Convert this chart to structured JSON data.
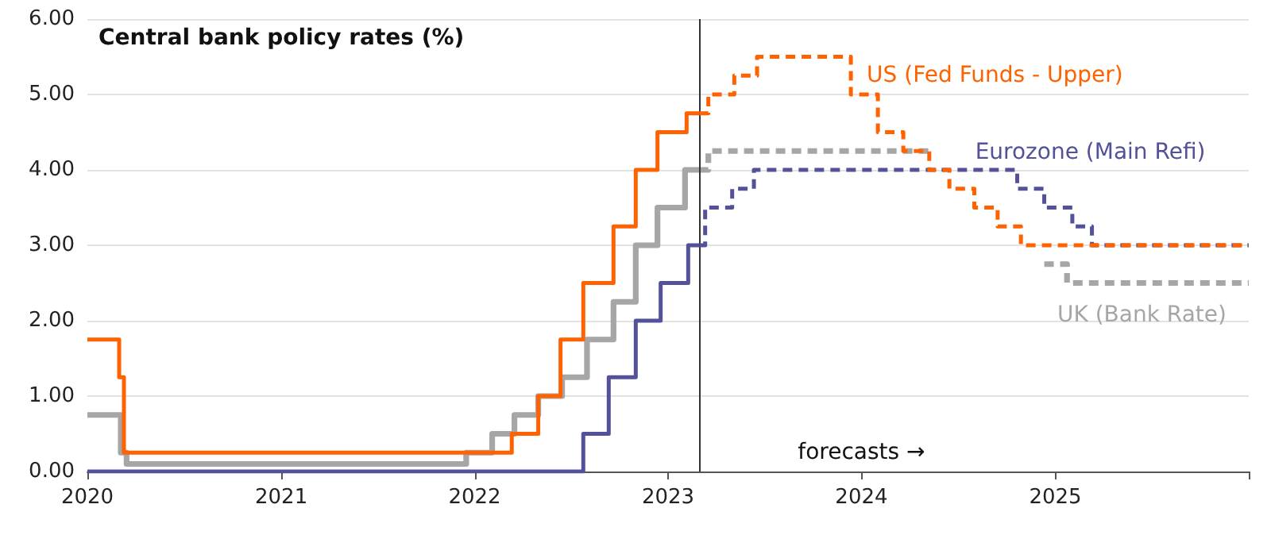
{
  "chart_data": {
    "type": "step",
    "title": "Central bank policy rates (%)",
    "xlim": [
      "2020-01-01",
      "2026-01-01"
    ],
    "xticks": [
      {
        "value": "2020-01-01",
        "label": "2020"
      },
      {
        "value": "2021-01-01",
        "label": "2021"
      },
      {
        "value": "2022-01-01",
        "label": "2022"
      },
      {
        "value": "2023-01-01",
        "label": "2023"
      },
      {
        "value": "2024-01-01",
        "label": "2024"
      },
      {
        "value": "2025-01-01",
        "label": "2025"
      },
      {
        "value": "2026-01-01",
        "label": null
      }
    ],
    "ylim": [
      0,
      6
    ],
    "yticks": [
      {
        "value": 0,
        "label": "0.00"
      },
      {
        "value": 1,
        "label": "1.00"
      },
      {
        "value": 2,
        "label": "2.00"
      },
      {
        "value": 3,
        "label": "3.00"
      },
      {
        "value": 4,
        "label": "4.00"
      },
      {
        "value": 5,
        "label": "5.00"
      },
      {
        "value": 6,
        "label": "6.00"
      }
    ],
    "grid": "y",
    "series": [
      {
        "color": "#a6a6a6",
        "line_style": "solid",
        "x": [
          "2020-01-01",
          "2020-03-04",
          "2020-03-15",
          "2021-12-16",
          "2022-02-03",
          "2022-03-17",
          "2022-05-01",
          "2022-06-15",
          "2022-08-01",
          "2022-09-20",
          "2022-11-01",
          "2022-12-12",
          "2023-02-02",
          "2023-03-01"
        ],
        "values": [
          0.75,
          0.25,
          0.1,
          0.25,
          0.5,
          0.75,
          1.0,
          1.25,
          1.75,
          2.25,
          3.0,
          3.5,
          4.0,
          4.0
        ]
      },
      {
        "name": "UK (Bank Rate)",
        "color": "#a6a6a6",
        "line_style": "dashed",
        "x": [
          "2023-03-01",
          "2023-03-18",
          "2024-05-08",
          "2024-05-09",
          "2024-12-11",
          "2025-01-23",
          "2026-01-01"
        ],
        "values": [
          4.0,
          4.25,
          4.25,
          null,
          2.75,
          2.5,
          2.5
        ]
      },
      {
        "color": "#525199",
        "line_style": "solid",
        "x": [
          "2020-01-01",
          "2022-07-25",
          "2022-09-11",
          "2022-11-01",
          "2022-12-18",
          "2023-02-08",
          "2023-03-01"
        ],
        "values": [
          0,
          0.5,
          1.25,
          2.0,
          2.5,
          3.0,
          3.0
        ]
      },
      {
        "name": "Eurozone (Main Refi)",
        "color": "#525199",
        "line_style": "dashed",
        "x": [
          "2023-03-01",
          "2023-03-12",
          "2023-05-02",
          "2023-06-12",
          "2024-10-21",
          "2024-12-11",
          "2025-02-02",
          "2025-03-11",
          "2026-01-01"
        ],
        "values": [
          3.0,
          3.5,
          3.75,
          4.0,
          3.75,
          3.5,
          3.25,
          3.0,
          3.0
        ]
      },
      {
        "color": "#ff6200",
        "line_style": "solid",
        "x": [
          "2020-01-01",
          "2020-03-01",
          "2020-03-10",
          "2022-03-12",
          "2022-05-01",
          "2022-06-12",
          "2022-07-25",
          "2022-09-20",
          "2022-11-01",
          "2022-12-12",
          "2023-02-05",
          "2023-03-01"
        ],
        "values": [
          1.75,
          1.25,
          0.25,
          0.5,
          1.0,
          1.75,
          2.5,
          3.25,
          4.0,
          4.5,
          4.75,
          4.75
        ]
      },
      {
        "name": "US (Fed Funds - Upper)",
        "color": "#ff6200",
        "line_style": "dashed",
        "x": [
          "2023-03-01",
          "2023-03-18",
          "2023-05-06",
          "2023-06-18",
          "2023-12-12",
          "2024-02-01",
          "2024-03-20",
          "2024-05-08",
          "2024-06-15",
          "2024-08-01",
          "2024-09-14",
          "2024-10-28",
          "2026-01-01"
        ],
        "values": [
          4.75,
          5.0,
          5.25,
          5.5,
          5.0,
          4.5,
          4.25,
          4.0,
          3.75,
          3.5,
          3.25,
          3.0,
          3.0
        ]
      }
    ],
    "ref_lines": [
      {
        "axis": "x",
        "value": "2023-03-01",
        "color": "#333333"
      }
    ],
    "annotations": [
      "forecasts →"
    ]
  }
}
